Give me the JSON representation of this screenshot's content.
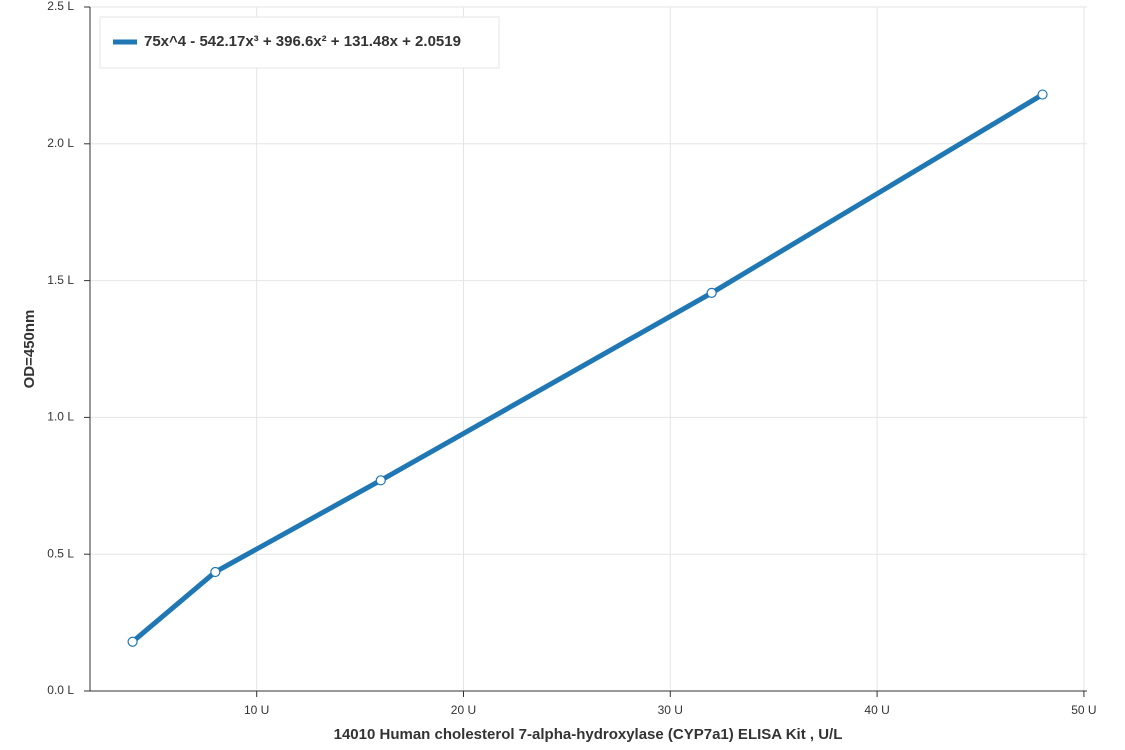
{
  "chart_data": {
    "type": "line",
    "x_label": "14010 Human cholesterol 7-alpha-hydroxylase (CYP7a1) ELISA Kit , U/L",
    "y_label": "OD=450nm",
    "series": [
      {
        "name": "75x^4 - 542.17x³ + 396.6x² + 131.48x + 2.0519",
        "color": "#1f77b4",
        "x": [
          4,
          8,
          16,
          32,
          48
        ],
        "values": [
          0.18,
          0.435,
          0.77,
          1.455,
          2.18
        ]
      }
    ],
    "xlim": [
      1.94,
      50.15
    ],
    "ylim": [
      0,
      2.5
    ],
    "xticks": [
      {
        "value": 10,
        "label": "10 U"
      },
      {
        "value": 20,
        "label": "20 U"
      },
      {
        "value": 30,
        "label": "30 U"
      },
      {
        "value": 40,
        "label": "40 U"
      },
      {
        "value": 50,
        "label": "50 U"
      }
    ],
    "yticks": [
      {
        "value": 0,
        "label": "0.0 L"
      },
      {
        "value": 0.5,
        "label": "0.5 L"
      },
      {
        "value": 1,
        "label": "1.0 L"
      },
      {
        "value": 1.5,
        "label": "1.5 L"
      },
      {
        "value": 2,
        "label": "2.0 L"
      },
      {
        "value": 2.5,
        "label": "2.5 L"
      }
    ],
    "grid": true,
    "legend": "top-left"
  }
}
